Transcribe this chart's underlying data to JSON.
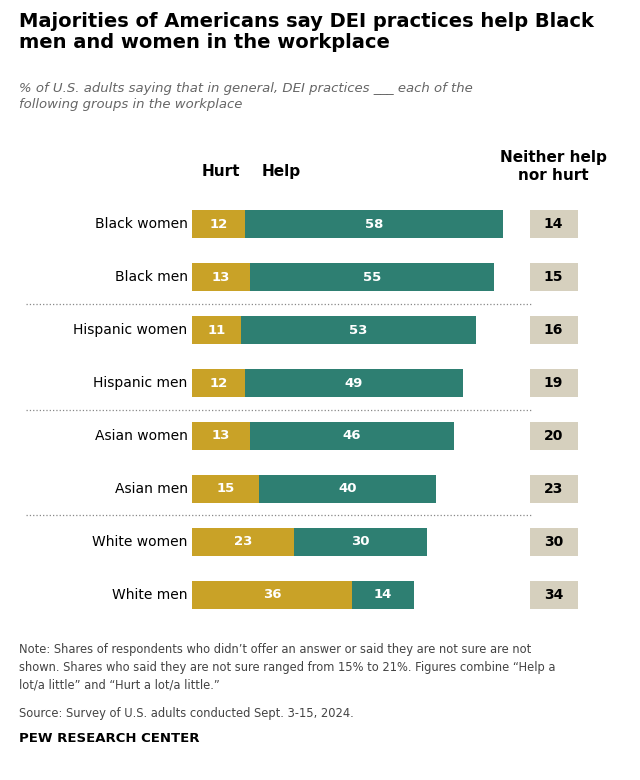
{
  "title": "Majorities of Americans say DEI practices help Black\nmen and women in the workplace",
  "subtitle": "% of U.S. adults saying that in general, DEI practices ___ each of the\nfollowing groups in the workplace",
  "categories": [
    "Black women",
    "Black men",
    "Hispanic women",
    "Hispanic men",
    "Asian women",
    "Asian men",
    "White women",
    "White men"
  ],
  "hurt": [
    12,
    13,
    11,
    12,
    13,
    15,
    23,
    36
  ],
  "help": [
    58,
    55,
    53,
    49,
    46,
    40,
    30,
    14
  ],
  "neither": [
    14,
    15,
    16,
    19,
    20,
    23,
    30,
    34
  ],
  "hurt_color": "#C9A227",
  "help_color": "#2E7F72",
  "neither_color": "#D6D0BE",
  "note": "Note: Shares of respondents who didn’t offer an answer or said they are not sure are not\nshown. Shares who said they are not sure ranged from 15% to 21%. Figures combine “Help a\nlot/a little” and “Hurt a lot/a little.”",
  "source": "Source: Survey of U.S. adults conducted Sept. 3-15, 2024.",
  "attribution": "PEW RESEARCH CENTER",
  "bar_height": 0.52,
  "figsize": [
    6.4,
    7.8
  ],
  "dpi": 100
}
